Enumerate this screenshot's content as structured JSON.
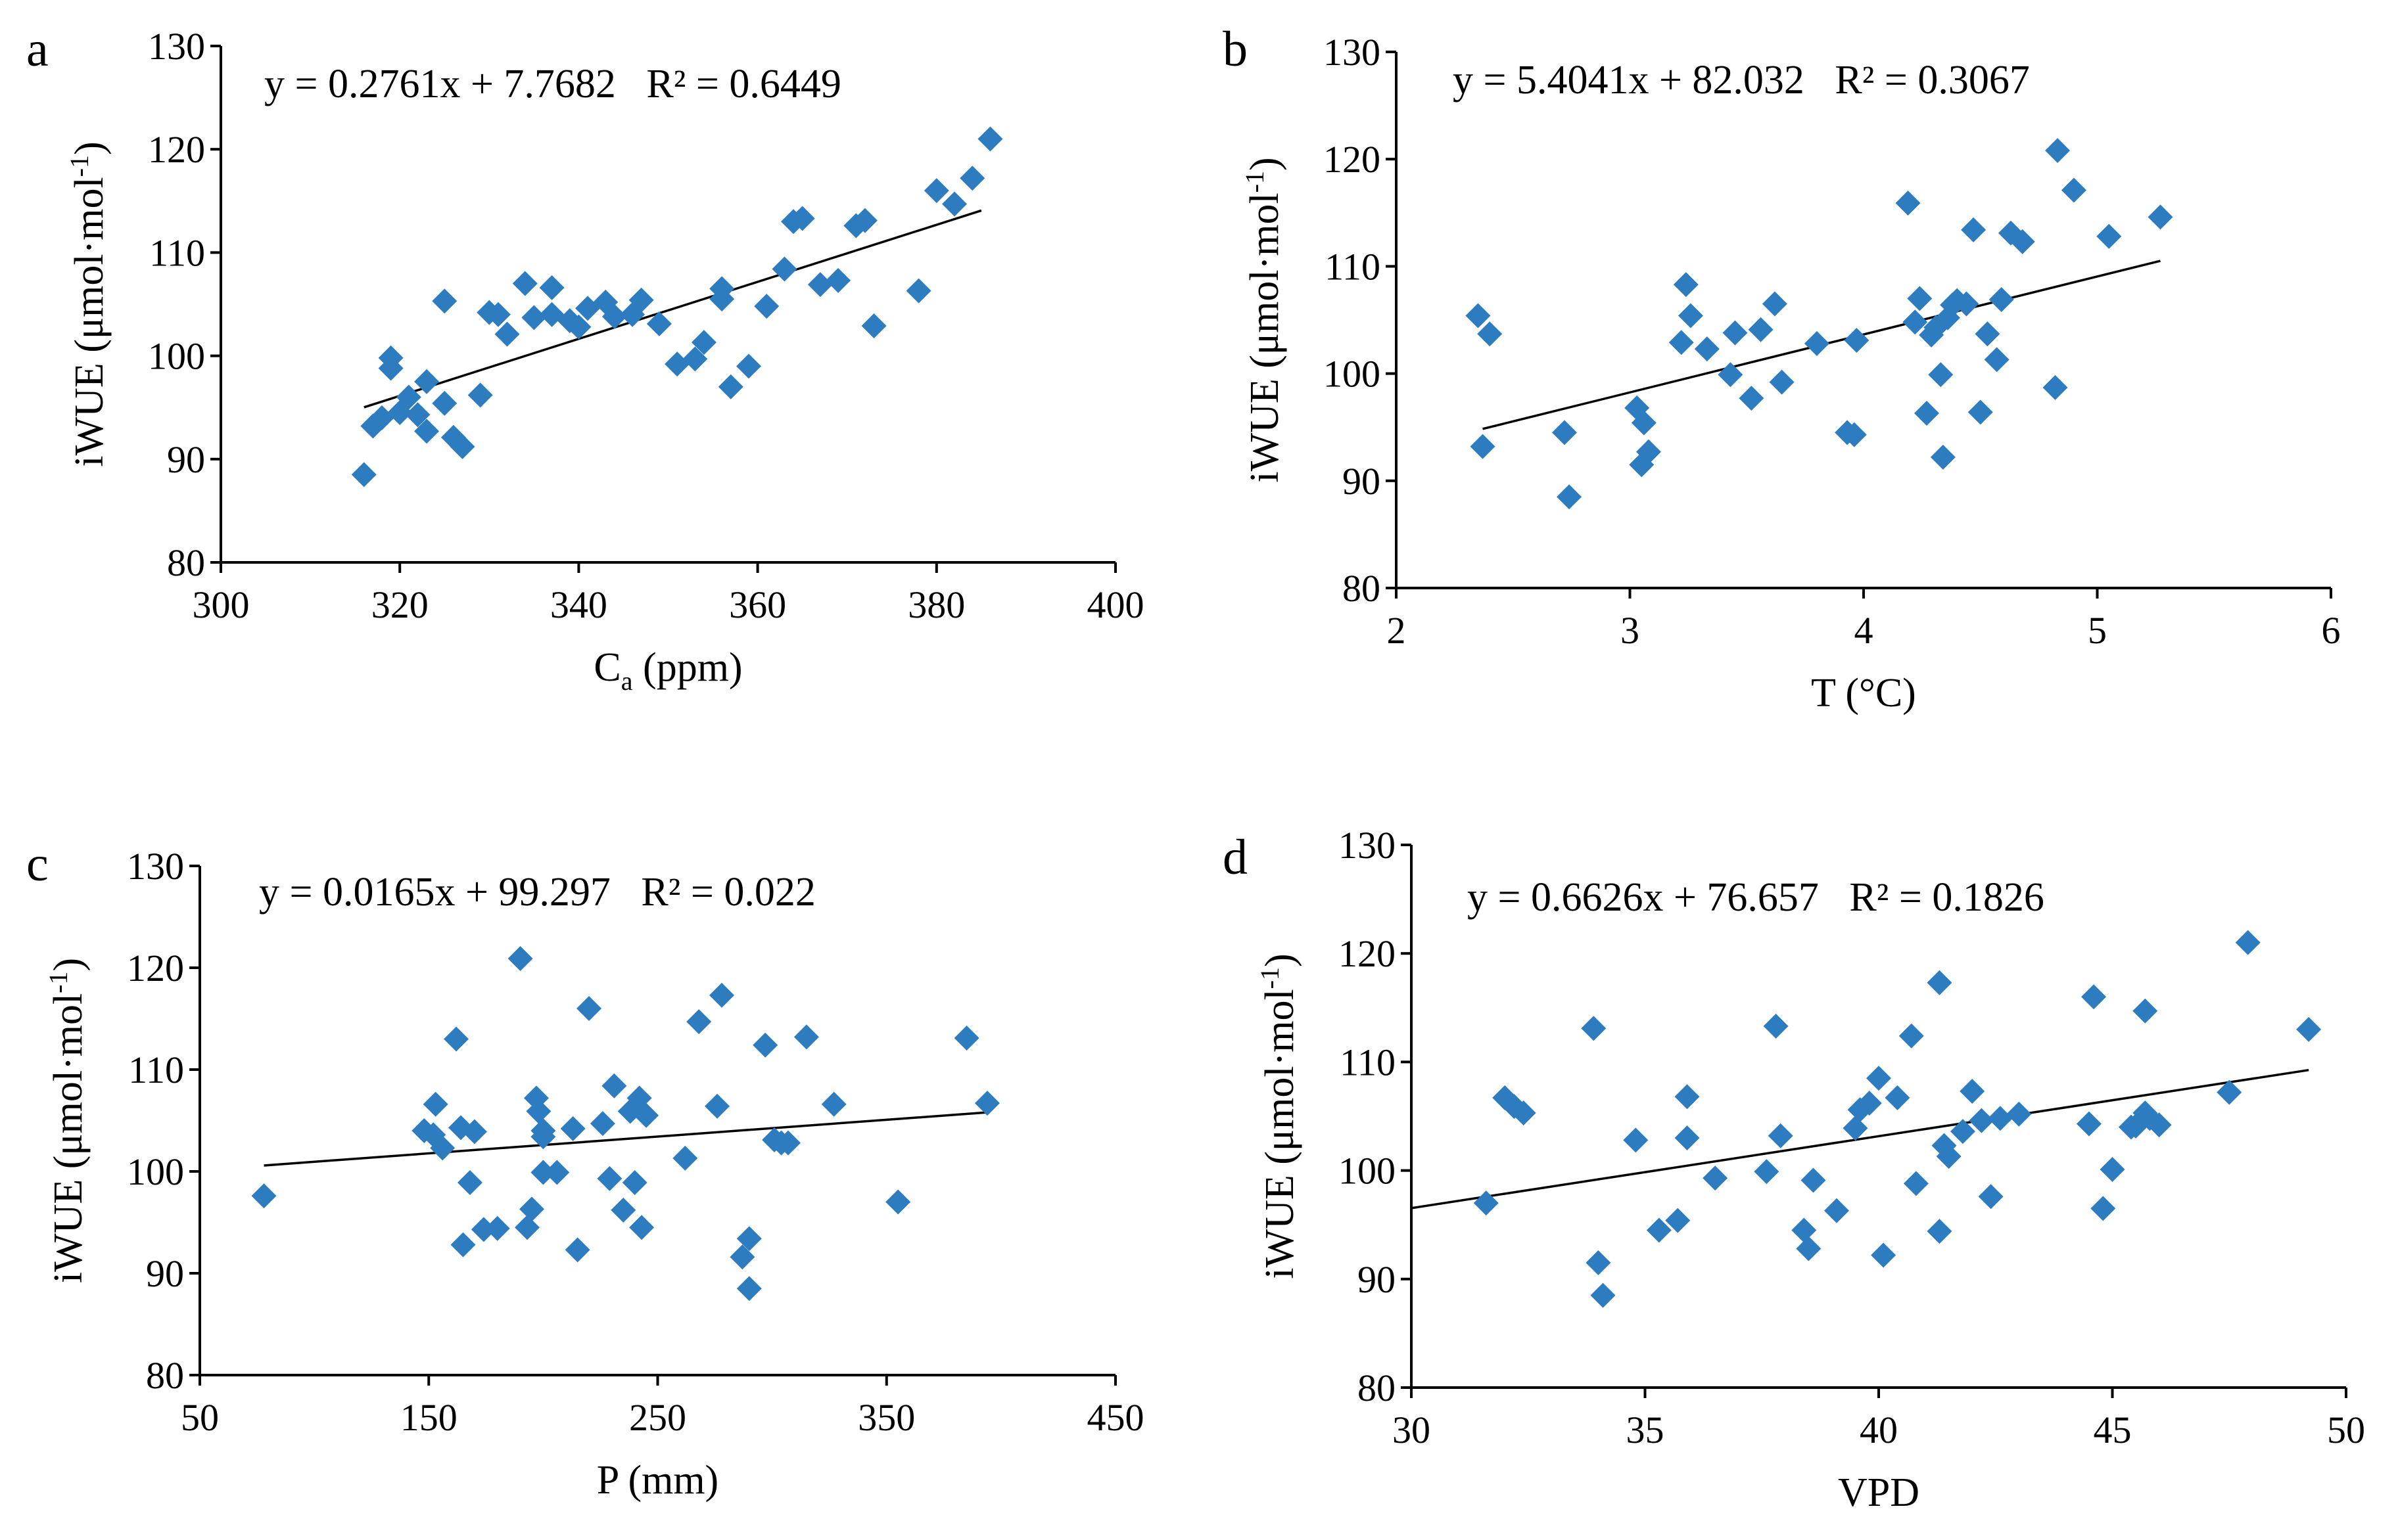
{
  "chart_data": [
    {
      "type": "scatter",
      "panel": "a",
      "equation": "y = 0.2761x + 7.7682   R² = 0.6449",
      "xlabel": "C",
      "xlabel_sub": "a",
      "xlabel_suffix": " (ppm)",
      "ylabel": "iWUE (μmol·mol",
      "ylabel_sup": "-1",
      "ylabel_suffix": ")",
      "xlim": [
        300,
        400
      ],
      "ylim": [
        80,
        130
      ],
      "xticks": [
        300,
        320,
        340,
        360,
        380,
        400
      ],
      "yticks": [
        80,
        90,
        100,
        110,
        120,
        130
      ],
      "trendline": {
        "slope": 0.2761,
        "intercept": 7.7682,
        "x_range": [
          316,
          385
        ]
      },
      "x": [
        316,
        317,
        318,
        319,
        319,
        320,
        321,
        322,
        323,
        323,
        325,
        325,
        326,
        327,
        329,
        330,
        331,
        332,
        334,
        335,
        337,
        337,
        339,
        340,
        341,
        343,
        344,
        346,
        347,
        349,
        351,
        353,
        354,
        356,
        356,
        357,
        359,
        361,
        363,
        364,
        365,
        367,
        369,
        371,
        372,
        373,
        378,
        380,
        382,
        384,
        386
      ],
      "y": [
        88.5,
        93.2,
        94.0,
        99.8,
        98.8,
        94.5,
        96.0,
        94.3,
        92.7,
        97.5,
        105.3,
        95.4,
        92.1,
        91.2,
        96.2,
        104.2,
        104.0,
        102.1,
        107.0,
        103.7,
        106.6,
        104.0,
        103.4,
        102.8,
        104.6,
        105.2,
        103.8,
        104.0,
        105.4,
        103.1,
        99.2,
        99.7,
        101.3,
        105.5,
        106.5,
        97.0,
        99.0,
        104.8,
        108.4,
        113.0,
        113.3,
        106.9,
        107.3,
        112.6,
        113.1,
        102.9,
        106.3,
        116.0,
        114.7,
        117.2,
        121.0
      ]
    },
    {
      "type": "scatter",
      "panel": "b",
      "equation": "y = 5.4041x + 82.032   R² = 0.3067",
      "xlabel": "T (°C)",
      "ylabel": "iWUE (μmol·mol",
      "ylabel_sup": "-1",
      "ylabel_suffix": ")",
      "xlim": [
        2,
        6
      ],
      "ylim": [
        80,
        130
      ],
      "xticks": [
        2,
        3,
        4,
        5,
        6
      ],
      "yticks": [
        80,
        90,
        100,
        110,
        120,
        130
      ],
      "trendline": {
        "slope": 5.4041,
        "intercept": 82.032,
        "x_range": [
          2.37,
          5.27
        ]
      },
      "x": [
        2.35,
        2.37,
        2.4,
        2.72,
        2.74,
        3.03,
        3.05,
        3.06,
        3.08,
        3.22,
        3.24,
        3.26,
        3.33,
        3.43,
        3.45,
        3.52,
        3.56,
        3.62,
        3.65,
        3.8,
        3.93,
        3.96,
        3.97,
        4.19,
        4.22,
        4.24,
        4.27,
        4.29,
        4.31,
        4.33,
        4.34,
        4.36,
        4.38,
        4.4,
        4.44,
        4.47,
        4.5,
        4.53,
        4.57,
        4.59,
        4.63,
        4.68,
        4.82,
        4.83,
        4.9,
        5.05,
        5.27
      ],
      "y": [
        105.4,
        93.2,
        103.7,
        94.5,
        88.5,
        96.8,
        91.5,
        95.4,
        92.7,
        102.9,
        108.3,
        105.4,
        102.3,
        99.9,
        103.8,
        97.7,
        104.1,
        106.5,
        99.2,
        102.8,
        94.5,
        94.3,
        103.1,
        115.9,
        104.8,
        107.0,
        96.3,
        103.6,
        104.3,
        99.9,
        92.2,
        105.2,
        106.4,
        106.8,
        106.5,
        113.4,
        96.4,
        103.7,
        101.3,
        106.9,
        113.1,
        112.3,
        98.7,
        120.8,
        117.1,
        112.8,
        114.6
      ]
    },
    {
      "type": "scatter",
      "panel": "c",
      "equation": "y = 0.0165x + 99.297   R² = 0.022",
      "xlabel": "P (mm)",
      "ylabel": "iWUE (μmol·mol",
      "ylabel_sup": "-1",
      "ylabel_suffix": ")",
      "xlim": [
        50,
        450
      ],
      "ylim": [
        80,
        130
      ],
      "xticks": [
        50,
        150,
        250,
        350,
        450
      ],
      "yticks": [
        80,
        90,
        100,
        110,
        120,
        130
      ],
      "trendline": {
        "slope": 0.0165,
        "intercept": 99.297,
        "x_range": [
          78,
          394
        ]
      },
      "x": [
        78,
        148,
        152,
        153,
        156,
        162,
        164,
        165,
        168,
        170,
        174,
        180,
        190,
        193,
        195,
        197,
        198,
        200,
        200,
        200,
        206,
        213,
        215,
        220,
        226,
        229,
        231,
        235,
        238,
        240,
        242,
        243,
        245,
        262,
        268,
        276,
        278,
        287,
        290,
        290,
        297,
        301,
        304,
        307,
        315,
        327,
        355,
        385,
        394
      ],
      "y": [
        97.6,
        104.0,
        103.6,
        106.6,
        102.3,
        113.0,
        104.3,
        92.8,
        98.9,
        103.9,
        94.3,
        94.4,
        120.9,
        94.5,
        96.3,
        107.2,
        105.9,
        99.9,
        104.0,
        103.4,
        99.9,
        104.2,
        92.3,
        116.0,
        104.7,
        99.3,
        108.4,
        96.2,
        105.9,
        98.9,
        107.2,
        94.5,
        105.5,
        101.3,
        114.7,
        106.4,
        117.3,
        91.6,
        93.4,
        88.5,
        112.4,
        103.1,
        102.8,
        102.8,
        113.2,
        106.6,
        97.0,
        113.1,
        106.7
      ]
    },
    {
      "type": "scatter",
      "panel": "d",
      "equation": "y = 0.6626x + 76.657   R² = 0.1826",
      "xlabel": "VPD",
      "ylabel": "iWUE (μmol·mol",
      "ylabel_sup": "-1",
      "ylabel_suffix": ")",
      "xlim": [
        30,
        50
      ],
      "ylim": [
        80,
        130
      ],
      "xticks": [
        30,
        35,
        40,
        45,
        50
      ],
      "yticks": [
        80,
        90,
        100,
        110,
        120,
        130
      ],
      "trendline": {
        "slope": 0.6626,
        "intercept": 76.657,
        "x_range": [
          30,
          49.2
        ]
      },
      "x": [
        31.6,
        32.0,
        32.2,
        32.4,
        33.9,
        34.0,
        34.1,
        34.8,
        35.3,
        35.7,
        35.9,
        35.9,
        36.5,
        37.6,
        37.8,
        37.9,
        38.4,
        38.5,
        38.6,
        39.1,
        39.5,
        39.6,
        39.8,
        40.0,
        40.1,
        40.4,
        40.7,
        40.8,
        41.3,
        41.3,
        41.4,
        41.5,
        41.8,
        42.0,
        42.2,
        42.4,
        42.6,
        43.0,
        44.5,
        44.6,
        44.8,
        45.0,
        45.4,
        45.5,
        45.7,
        45.7,
        45.8,
        46.0,
        47.5,
        47.9,
        49.2
      ],
      "y": [
        97.0,
        106.7,
        105.9,
        105.3,
        113.1,
        91.5,
        88.5,
        102.8,
        94.5,
        95.4,
        106.8,
        103.0,
        99.3,
        99.9,
        113.3,
        103.2,
        94.5,
        92.8,
        99.1,
        96.3,
        103.9,
        105.6,
        106.2,
        108.5,
        92.2,
        106.7,
        112.4,
        98.8,
        117.3,
        94.4,
        102.3,
        101.3,
        103.6,
        107.3,
        104.6,
        97.6,
        104.8,
        105.2,
        104.3,
        116.0,
        96.5,
        100.1,
        104.0,
        104.1,
        114.7,
        105.3,
        104.8,
        104.2,
        107.2,
        121.0,
        113.0
      ]
    }
  ]
}
